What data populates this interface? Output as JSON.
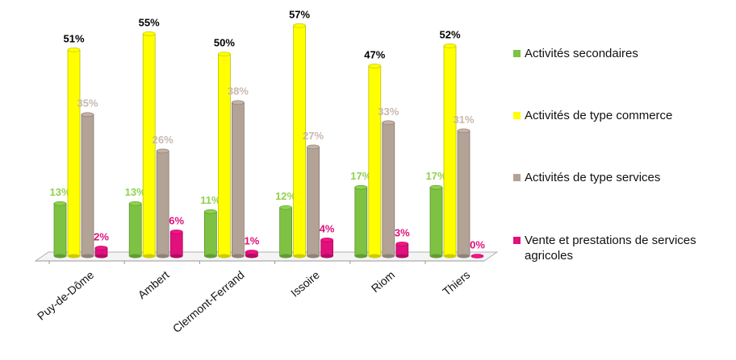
{
  "chart_data": {
    "type": "bar",
    "categories": [
      "Puy-de-Dôme",
      "Ambert",
      "Clermont-Ferrand",
      "Issoire",
      "Riom",
      "Thiers"
    ],
    "series": [
      {
        "name": "Activités secondaires",
        "color": "#7dc242",
        "label_color": "#8fd14f",
        "values": [
          13,
          13,
          11,
          12,
          17,
          17
        ],
        "value_labels": [
          "13%",
          "13%",
          "11%",
          "12%",
          "17%",
          "17%"
        ]
      },
      {
        "name": "Activités de type commerce",
        "color": "#ffff00",
        "label_color": "#000000",
        "values": [
          51,
          55,
          50,
          57,
          47,
          52
        ],
        "value_labels": [
          "51%",
          "55%",
          "50%",
          "57%",
          "47%",
          "52%"
        ]
      },
      {
        "name": "Activités de type services",
        "color": "#b3a296",
        "label_color": "#c8b8ae",
        "values": [
          35,
          26,
          38,
          27,
          33,
          31
        ],
        "value_labels": [
          "35%",
          "26%",
          "38%",
          "27%",
          "33%",
          "31%"
        ]
      },
      {
        "name": "Vente et prestations de services agricoles",
        "color": "#e0107c",
        "label_color": "#e0107c",
        "values": [
          2,
          6,
          1,
          4,
          3,
          0
        ],
        "value_labels": [
          "2%",
          "6%",
          "1%",
          "4%",
          "3%",
          "0%"
        ]
      }
    ],
    "legend": "right"
  }
}
